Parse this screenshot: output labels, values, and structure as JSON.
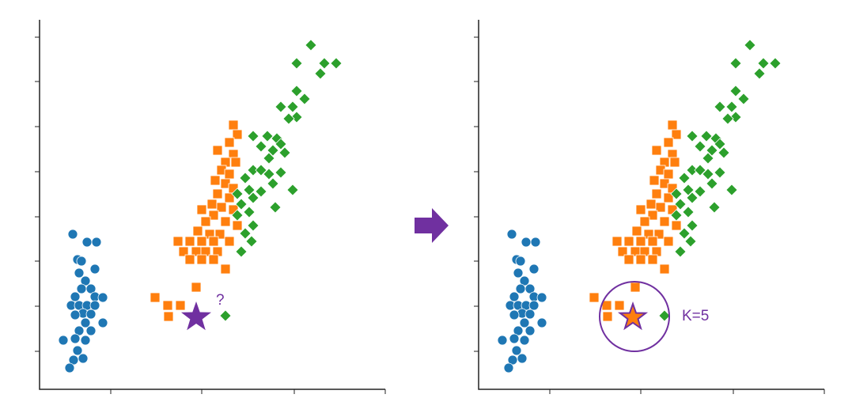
{
  "query_label": "?",
  "k_label": "K=5"
}
